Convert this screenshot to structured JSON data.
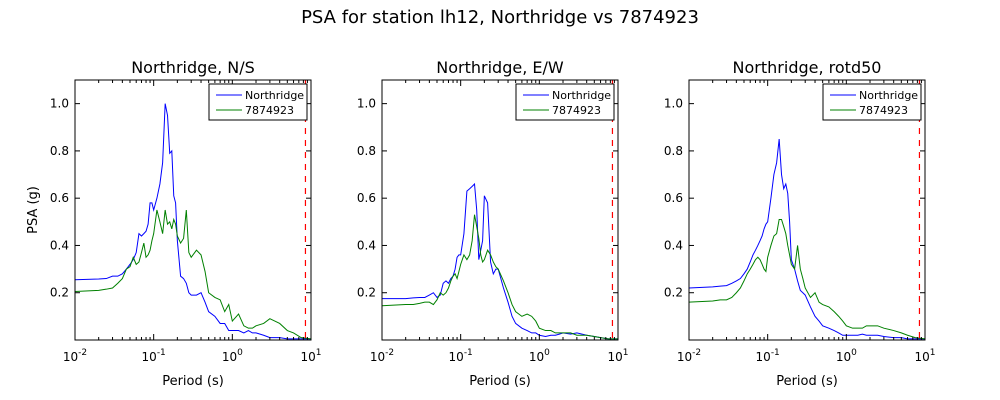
{
  "figure": {
    "title": "PSA for station lh12, Northridge vs 7874923"
  },
  "chart_data": [
    {
      "type": "line",
      "title": "Northridge, N/S",
      "xlabel": "Period (s)",
      "ylabel": "PSA (g)",
      "xscale": "log",
      "xlim": [
        0.01,
        10
      ],
      "ylim": [
        0,
        1.1
      ],
      "yticks": [
        0.2,
        0.4,
        0.6,
        0.8,
        1.0
      ],
      "ytick_labels": [
        "0.2",
        "0.4",
        "0.6",
        "0.8",
        "1.0"
      ],
      "xticks": [
        0.01,
        0.1,
        1,
        10
      ],
      "xtick_labels": [
        {
          "base": "10",
          "exp": "-2"
        },
        {
          "base": "10",
          "exp": "-1"
        },
        {
          "base": "10",
          "exp": "0"
        },
        {
          "base": "10",
          "exp": "1"
        }
      ],
      "legend": "top-right",
      "grid": false,
      "vline": {
        "x": 8.5,
        "color": "#ff0000",
        "style": "dashed"
      },
      "series": [
        {
          "name": "Northridge",
          "color": "#0000ff",
          "x": [
            0.01,
            0.02,
            0.025,
            0.03,
            0.035,
            0.04,
            0.045,
            0.05,
            0.055,
            0.06,
            0.065,
            0.07,
            0.075,
            0.08,
            0.085,
            0.09,
            0.095,
            0.1,
            0.11,
            0.12,
            0.13,
            0.14,
            0.15,
            0.16,
            0.17,
            0.18,
            0.19,
            0.2,
            0.22,
            0.24,
            0.26,
            0.28,
            0.3,
            0.35,
            0.4,
            0.45,
            0.5,
            0.6,
            0.7,
            0.8,
            0.9,
            1.0,
            1.2,
            1.4,
            1.6,
            1.8,
            2.0,
            2.5,
            3.0,
            4.0,
            5.0,
            6.0,
            7.5,
            10.0
          ],
          "y": [
            0.255,
            0.258,
            0.26,
            0.27,
            0.27,
            0.28,
            0.3,
            0.32,
            0.34,
            0.37,
            0.45,
            0.44,
            0.45,
            0.46,
            0.49,
            0.58,
            0.58,
            0.55,
            0.6,
            0.66,
            0.75,
            1.0,
            0.95,
            0.79,
            0.8,
            0.61,
            0.58,
            0.42,
            0.27,
            0.26,
            0.24,
            0.2,
            0.19,
            0.19,
            0.2,
            0.16,
            0.12,
            0.1,
            0.07,
            0.07,
            0.04,
            0.04,
            0.04,
            0.03,
            0.04,
            0.03,
            0.03,
            0.02,
            0.01,
            0.01,
            0.005,
            0.005,
            0.005,
            0.005
          ]
        },
        {
          "name": "7874923",
          "color": "#008000",
          "x": [
            0.01,
            0.02,
            0.025,
            0.03,
            0.035,
            0.04,
            0.045,
            0.05,
            0.055,
            0.06,
            0.065,
            0.07,
            0.075,
            0.08,
            0.085,
            0.09,
            0.095,
            0.1,
            0.11,
            0.12,
            0.13,
            0.14,
            0.15,
            0.16,
            0.17,
            0.18,
            0.19,
            0.2,
            0.22,
            0.24,
            0.26,
            0.28,
            0.3,
            0.35,
            0.4,
            0.45,
            0.5,
            0.6,
            0.7,
            0.8,
            0.9,
            1.0,
            1.2,
            1.4,
            1.6,
            1.8,
            2.0,
            2.5,
            3.0,
            4.0,
            5.0,
            6.0,
            7.5,
            10.0
          ],
          "y": [
            0.205,
            0.21,
            0.215,
            0.22,
            0.24,
            0.26,
            0.3,
            0.31,
            0.35,
            0.32,
            0.33,
            0.37,
            0.41,
            0.35,
            0.36,
            0.38,
            0.42,
            0.45,
            0.55,
            0.5,
            0.45,
            0.55,
            0.49,
            0.5,
            0.47,
            0.51,
            0.49,
            0.44,
            0.41,
            0.43,
            0.55,
            0.37,
            0.35,
            0.38,
            0.36,
            0.29,
            0.2,
            0.18,
            0.17,
            0.12,
            0.15,
            0.08,
            0.11,
            0.06,
            0.05,
            0.05,
            0.06,
            0.07,
            0.09,
            0.07,
            0.04,
            0.03,
            0.01,
            0.005
          ]
        }
      ]
    },
    {
      "type": "line",
      "title": "Northridge, E/W",
      "xlabel": "Period (s)",
      "ylabel": "",
      "xscale": "log",
      "xlim": [
        0.01,
        10
      ],
      "ylim": [
        0,
        1.1
      ],
      "yticks": [
        0.2,
        0.4,
        0.6,
        0.8,
        1.0
      ],
      "ytick_labels": [
        "0.2",
        "0.4",
        "0.6",
        "0.8",
        "1.0"
      ],
      "xticks": [
        0.01,
        0.1,
        1,
        10
      ],
      "xtick_labels": [
        {
          "base": "10",
          "exp": "-2"
        },
        {
          "base": "10",
          "exp": "-1"
        },
        {
          "base": "10",
          "exp": "0"
        },
        {
          "base": "10",
          "exp": "1"
        }
      ],
      "legend": "top-right",
      "grid": false,
      "vline": {
        "x": 8.5,
        "color": "#ff0000",
        "style": "dashed"
      },
      "series": [
        {
          "name": "Northridge",
          "color": "#0000ff",
          "x": [
            0.01,
            0.02,
            0.025,
            0.03,
            0.035,
            0.04,
            0.045,
            0.05,
            0.055,
            0.06,
            0.065,
            0.07,
            0.075,
            0.08,
            0.085,
            0.09,
            0.095,
            0.1,
            0.11,
            0.12,
            0.13,
            0.14,
            0.15,
            0.16,
            0.17,
            0.18,
            0.19,
            0.2,
            0.22,
            0.24,
            0.26,
            0.28,
            0.3,
            0.35,
            0.4,
            0.45,
            0.5,
            0.6,
            0.7,
            0.8,
            0.9,
            1.0,
            1.2,
            1.4,
            1.6,
            1.8,
            2.0,
            2.5,
            3.0,
            4.0,
            5.0,
            6.0,
            7.5,
            10.0
          ],
          "y": [
            0.175,
            0.175,
            0.178,
            0.18,
            0.18,
            0.19,
            0.2,
            0.18,
            0.19,
            0.24,
            0.25,
            0.24,
            0.26,
            0.27,
            0.3,
            0.35,
            0.36,
            0.36,
            0.45,
            0.63,
            0.64,
            0.65,
            0.66,
            0.55,
            0.34,
            0.38,
            0.42,
            0.61,
            0.58,
            0.33,
            0.28,
            0.3,
            0.3,
            0.22,
            0.16,
            0.1,
            0.07,
            0.05,
            0.04,
            0.03,
            0.03,
            0.02,
            0.015,
            0.02,
            0.02,
            0.025,
            0.03,
            0.025,
            0.03,
            0.02,
            0.015,
            0.01,
            0.005,
            0.005
          ]
        },
        {
          "name": "7874923",
          "color": "#008000",
          "x": [
            0.01,
            0.02,
            0.025,
            0.03,
            0.035,
            0.04,
            0.045,
            0.05,
            0.055,
            0.06,
            0.065,
            0.07,
            0.075,
            0.08,
            0.085,
            0.09,
            0.095,
            0.1,
            0.11,
            0.12,
            0.13,
            0.14,
            0.15,
            0.16,
            0.17,
            0.18,
            0.19,
            0.2,
            0.22,
            0.24,
            0.26,
            0.28,
            0.3,
            0.35,
            0.4,
            0.45,
            0.5,
            0.6,
            0.7,
            0.8,
            0.9,
            1.0,
            1.2,
            1.4,
            1.6,
            1.8,
            2.0,
            2.5,
            3.0,
            4.0,
            5.0,
            6.0,
            7.5,
            10.0
          ],
          "y": [
            0.145,
            0.15,
            0.15,
            0.155,
            0.16,
            0.16,
            0.15,
            0.17,
            0.2,
            0.19,
            0.2,
            0.22,
            0.25,
            0.27,
            0.28,
            0.26,
            0.29,
            0.32,
            0.36,
            0.34,
            0.36,
            0.42,
            0.53,
            0.48,
            0.43,
            0.36,
            0.33,
            0.34,
            0.38,
            0.36,
            0.33,
            0.31,
            0.3,
            0.25,
            0.2,
            0.15,
            0.12,
            0.1,
            0.11,
            0.1,
            0.08,
            0.05,
            0.04,
            0.04,
            0.03,
            0.03,
            0.03,
            0.03,
            0.02,
            0.02,
            0.015,
            0.01,
            0.005,
            0.005
          ]
        }
      ]
    },
    {
      "type": "line",
      "title": "Northridge, rotd50",
      "xlabel": "Period (s)",
      "ylabel": "",
      "xscale": "log",
      "xlim": [
        0.01,
        10
      ],
      "ylim": [
        0,
        1.1
      ],
      "yticks": [
        0.2,
        0.4,
        0.6,
        0.8,
        1.0
      ],
      "ytick_labels": [
        "0.2",
        "0.4",
        "0.6",
        "0.8",
        "1.0"
      ],
      "xticks": [
        0.01,
        0.1,
        1,
        10
      ],
      "xtick_labels": [
        {
          "base": "10",
          "exp": "-2"
        },
        {
          "base": "10",
          "exp": "-1"
        },
        {
          "base": "10",
          "exp": "0"
        },
        {
          "base": "10",
          "exp": "1"
        }
      ],
      "legend": "top-right",
      "grid": false,
      "vline": {
        "x": 8.5,
        "color": "#ff0000",
        "style": "dashed"
      },
      "series": [
        {
          "name": "Northridge",
          "color": "#0000ff",
          "x": [
            0.01,
            0.02,
            0.025,
            0.03,
            0.035,
            0.04,
            0.045,
            0.05,
            0.055,
            0.06,
            0.065,
            0.07,
            0.075,
            0.08,
            0.085,
            0.09,
            0.095,
            0.1,
            0.11,
            0.12,
            0.13,
            0.14,
            0.15,
            0.16,
            0.17,
            0.18,
            0.19,
            0.2,
            0.22,
            0.24,
            0.26,
            0.28,
            0.3,
            0.35,
            0.4,
            0.45,
            0.5,
            0.6,
            0.7,
            0.8,
            0.9,
            1.0,
            1.2,
            1.4,
            1.6,
            1.8,
            2.0,
            2.5,
            3.0,
            4.0,
            5.0,
            6.0,
            7.5,
            10.0
          ],
          "y": [
            0.22,
            0.225,
            0.228,
            0.23,
            0.24,
            0.25,
            0.26,
            0.28,
            0.3,
            0.33,
            0.36,
            0.38,
            0.4,
            0.42,
            0.44,
            0.47,
            0.49,
            0.5,
            0.6,
            0.7,
            0.75,
            0.85,
            0.7,
            0.64,
            0.66,
            0.62,
            0.5,
            0.34,
            0.3,
            0.25,
            0.21,
            0.2,
            0.19,
            0.14,
            0.1,
            0.08,
            0.06,
            0.05,
            0.04,
            0.03,
            0.02,
            0.02,
            0.02,
            0.02,
            0.025,
            0.02,
            0.02,
            0.02,
            0.015,
            0.01,
            0.01,
            0.005,
            0.005,
            0.005
          ]
        },
        {
          "name": "7874923",
          "color": "#008000",
          "x": [
            0.01,
            0.02,
            0.025,
            0.03,
            0.035,
            0.04,
            0.045,
            0.05,
            0.055,
            0.06,
            0.065,
            0.07,
            0.075,
            0.08,
            0.085,
            0.09,
            0.095,
            0.1,
            0.11,
            0.12,
            0.13,
            0.14,
            0.15,
            0.16,
            0.17,
            0.18,
            0.19,
            0.2,
            0.22,
            0.24,
            0.26,
            0.28,
            0.3,
            0.35,
            0.4,
            0.45,
            0.5,
            0.6,
            0.7,
            0.8,
            0.9,
            1.0,
            1.2,
            1.4,
            1.6,
            1.8,
            2.0,
            2.5,
            3.0,
            4.0,
            5.0,
            6.0,
            7.5,
            10.0
          ],
          "y": [
            0.16,
            0.165,
            0.17,
            0.17,
            0.18,
            0.2,
            0.22,
            0.25,
            0.28,
            0.3,
            0.32,
            0.34,
            0.35,
            0.34,
            0.32,
            0.3,
            0.29,
            0.35,
            0.4,
            0.44,
            0.45,
            0.51,
            0.51,
            0.48,
            0.45,
            0.4,
            0.36,
            0.32,
            0.3,
            0.4,
            0.3,
            0.26,
            0.22,
            0.18,
            0.2,
            0.16,
            0.15,
            0.14,
            0.12,
            0.1,
            0.08,
            0.06,
            0.05,
            0.05,
            0.05,
            0.06,
            0.06,
            0.06,
            0.05,
            0.04,
            0.03,
            0.02,
            0.01,
            0.005
          ]
        }
      ]
    }
  ]
}
